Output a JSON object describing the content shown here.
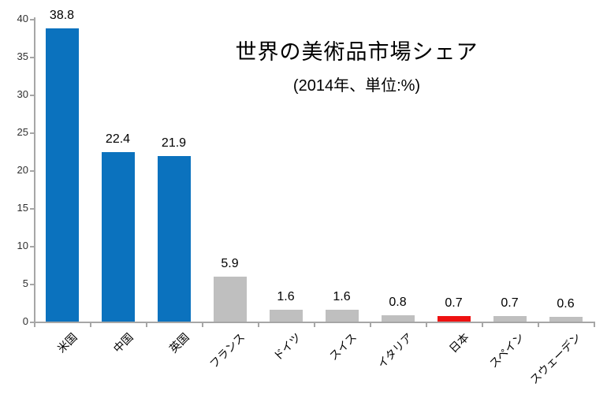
{
  "chart": {
    "title": "世界の美術品市場シェア",
    "subtitle": "(2014年、単位:%)"
  },
  "chart_data": {
    "type": "bar",
    "title": "世界の美術品市場シェア",
    "subtitle": "(2014年、単位:%)",
    "categories": [
      "米国",
      "中国",
      "英国",
      "フランス",
      "ドイツ",
      "スイス",
      "イタリア",
      "日本",
      "スペイン",
      "スウェーデン"
    ],
    "values": [
      38.8,
      22.4,
      21.9,
      5.9,
      1.6,
      1.6,
      0.8,
      0.7,
      0.7,
      0.6
    ],
    "value_labels": [
      "38.8",
      "22.4",
      "21.9",
      "5.9",
      "1.6",
      "1.6",
      "0.8",
      "0.7",
      "0.7",
      "0.6"
    ],
    "bar_colors": [
      "#0b72be",
      "#0b72be",
      "#0b72be",
      "#bfbfbf",
      "#bfbfbf",
      "#bfbfbf",
      "#bfbfbf",
      "#ee1111",
      "#bfbfbf",
      "#bfbfbf"
    ],
    "highlight_category": "日本",
    "ylim": [
      0,
      40
    ],
    "yticks": [
      0,
      5,
      10,
      15,
      20,
      25,
      30,
      35,
      40
    ],
    "xlabel": "",
    "ylabel": "",
    "grid": false,
    "legend": "none",
    "colors": {
      "primary_blue": "#0b72be",
      "neutral_gray": "#bfbfbf",
      "highlight_red": "#ee1111",
      "axis": "#a6a6a6",
      "text": "#000000"
    }
  }
}
